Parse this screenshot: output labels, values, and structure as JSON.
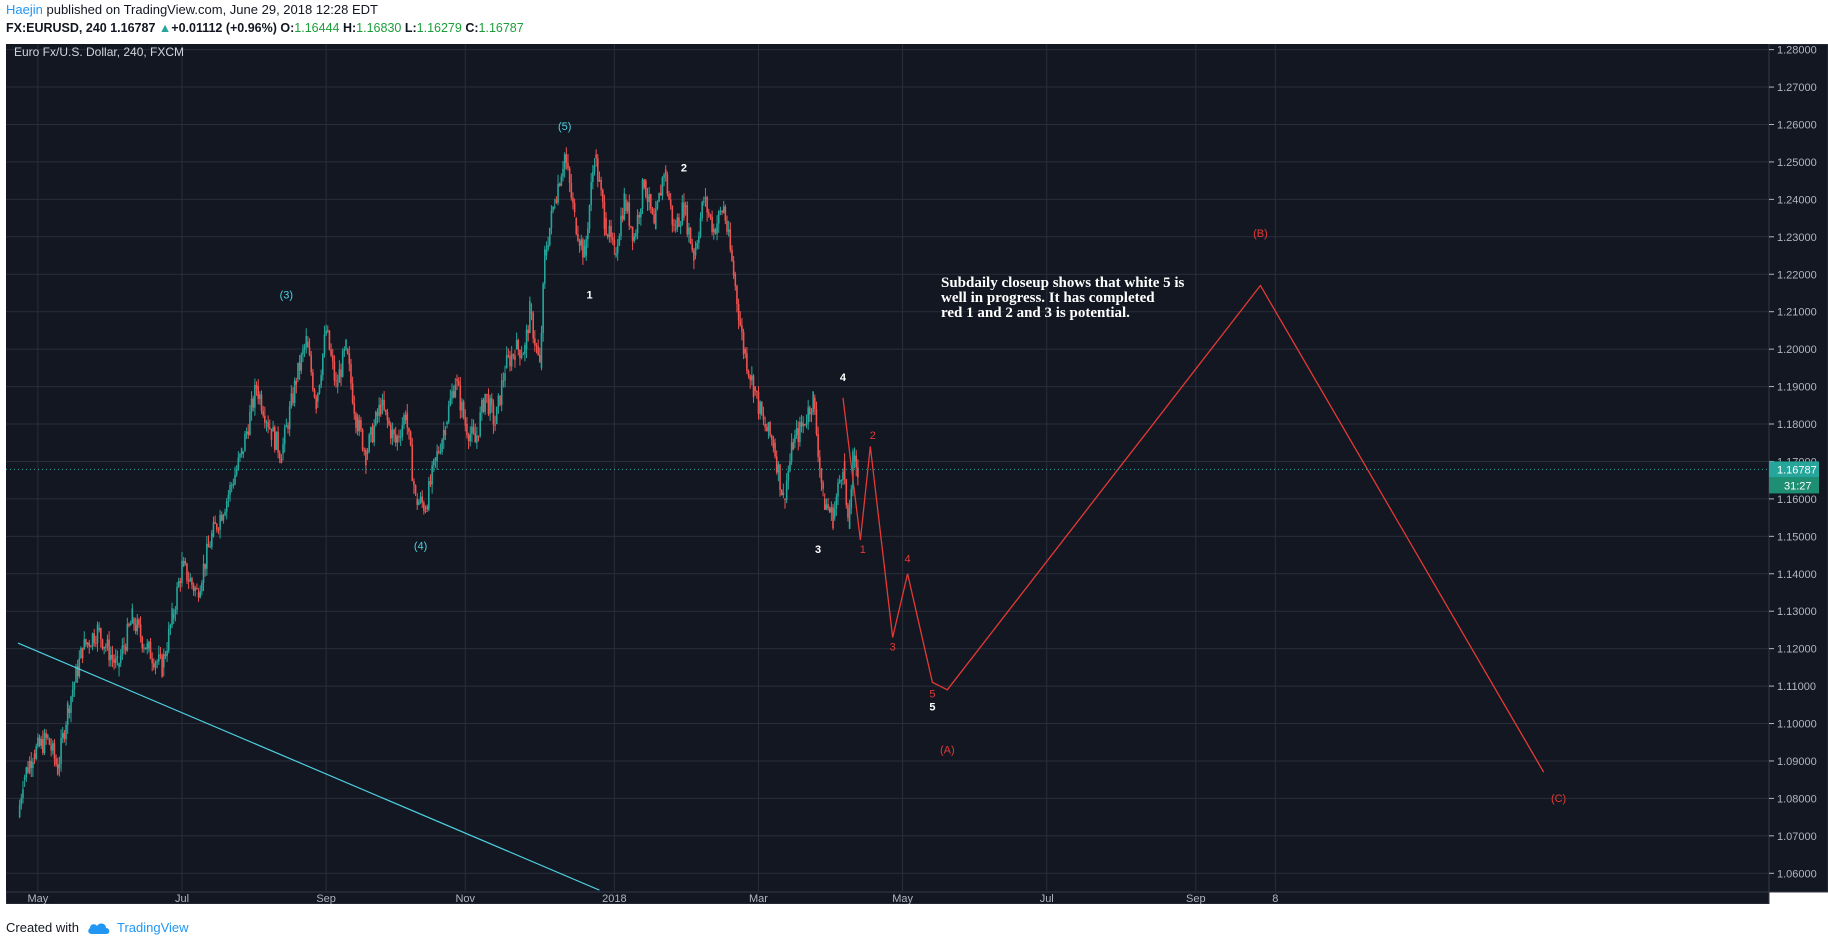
{
  "header": {
    "author": "Haejin",
    "published_text": "published on TradingView.com, June 29, 2018 12:28 EDT",
    "symbol": "FX:EURUSD, 240",
    "last": "1.16787",
    "change": "+0.01112 (+0.96%)",
    "o_label": "O:",
    "o": "1.16444",
    "h_label": "H:",
    "h": "1.16830",
    "l_label": "L:",
    "l": "1.16279",
    "c_label": "C:",
    "c": "1.16787"
  },
  "legend": "Euro Fx/U.S. Dollar, 240, FXCM",
  "price_tag": "1.16787",
  "countdown": "31:27",
  "annotation": [
    "Subdaily closeup shows that white 5 is",
    "well in progress. It has completed",
    "red 1 and 2 and 3 is potential."
  ],
  "footer": {
    "created_with": "Created with",
    "brand": "TradingView"
  },
  "colors": {
    "bg": "#131722",
    "grid": "#2a2e39",
    "axis_text": "#b2b5be",
    "up": "#26a69a",
    "down": "#ef5350",
    "cyan": "#4dd0e1",
    "red": "#e53935",
    "white": "#ffffff",
    "tag": "#26a69a"
  },
  "chart_data": {
    "type": "candlestick",
    "symbol": "EURUSD",
    "timeframe": "240",
    "x_ticks": [
      "May",
      "Jul",
      "Sep",
      "Nov",
      "2018",
      "Mar",
      "May",
      "Jul",
      "Sep",
      "8"
    ],
    "y_ticks": [
      "1.28000",
      "1.27000",
      "1.26000",
      "1.25000",
      "1.24000",
      "1.23000",
      "1.22000",
      "1.21000",
      "1.20000",
      "1.19000",
      "1.18000",
      "1.17000",
      "1.16000",
      "1.15000",
      "1.14000",
      "1.13000",
      "1.12000",
      "1.11000",
      "1.10000",
      "1.09000",
      "1.08000",
      "1.07000",
      "1.06000"
    ],
    "ylim": [
      1.055,
      1.2815
    ],
    "price_path": [
      [
        0,
        1.075
      ],
      [
        1,
        1.085
      ],
      [
        3,
        1.092
      ],
      [
        6,
        1.096
      ],
      [
        8,
        1.088
      ],
      [
        10,
        1.104
      ],
      [
        13,
        1.12
      ],
      [
        16,
        1.125
      ],
      [
        20,
        1.115
      ],
      [
        23,
        1.128
      ],
      [
        26,
        1.12
      ],
      [
        29,
        1.115
      ],
      [
        31,
        1.128
      ],
      [
        33,
        1.142
      ],
      [
        36,
        1.135
      ],
      [
        39,
        1.15
      ],
      [
        42,
        1.16
      ],
      [
        45,
        1.172
      ],
      [
        48,
        1.19
      ],
      [
        51,
        1.178
      ],
      [
        53,
        1.172
      ],
      [
        56,
        1.192
      ],
      [
        58,
        1.202
      ],
      [
        60,
        1.186
      ],
      [
        62,
        1.205
      ],
      [
        64,
        1.19
      ],
      [
        66,
        1.2
      ],
      [
        68,
        1.182
      ],
      [
        70,
        1.172
      ],
      [
        73,
        1.185
      ],
      [
        76,
        1.175
      ],
      [
        78,
        1.183
      ],
      [
        80,
        1.16
      ],
      [
        82,
        1.158
      ],
      [
        84,
        1.17
      ],
      [
        86,
        1.18
      ],
      [
        88,
        1.192
      ],
      [
        90,
        1.18
      ],
      [
        92,
        1.175
      ],
      [
        94,
        1.188
      ],
      [
        96,
        1.18
      ],
      [
        98,
        1.195
      ],
      [
        100,
        1.2
      ],
      [
        102,
        1.2
      ],
      [
        103,
        1.21
      ],
      [
        105,
        1.195
      ],
      [
        106,
        1.225
      ],
      [
        108,
        1.24
      ],
      [
        110,
        1.252
      ],
      [
        112,
        1.235
      ],
      [
        114,
        1.225
      ],
      [
        116,
        1.252
      ],
      [
        118,
        1.235
      ],
      [
        120,
        1.225
      ],
      [
        122,
        1.24
      ],
      [
        124,
        1.23
      ],
      [
        126,
        1.245
      ],
      [
        128,
        1.232
      ],
      [
        130,
        1.248
      ],
      [
        132,
        1.232
      ],
      [
        134,
        1.238
      ],
      [
        136,
        1.225
      ],
      [
        138,
        1.24
      ],
      [
        140,
        1.232
      ],
      [
        142,
        1.238
      ],
      [
        144,
        1.22
      ],
      [
        146,
        1.2
      ],
      [
        148,
        1.19
      ],
      [
        150,
        1.18
      ],
      [
        152,
        1.175
      ],
      [
        154,
        1.16
      ],
      [
        156,
        1.175
      ],
      [
        158,
        1.18
      ],
      [
        160,
        1.187
      ],
      [
        162,
        1.16
      ],
      [
        164,
        1.155
      ],
      [
        166,
        1.17
      ],
      [
        167,
        1.152
      ],
      [
        168,
        1.17
      ],
      [
        169,
        1.168
      ]
    ],
    "x_range": [
      0,
      330
    ],
    "waves_cyan": [
      {
        "label": "(3)",
        "t": 54,
        "p": 1.2135
      },
      {
        "label": "(4)",
        "t": 81,
        "p": 1.1465
      },
      {
        "label": "(5)",
        "t": 110,
        "p": 1.2585
      }
    ],
    "waves_white": [
      {
        "label": "1",
        "t": 115,
        "p": 1.2135
      },
      {
        "label": "2",
        "t": 134,
        "p": 1.2475
      },
      {
        "label": "3",
        "t": 161,
        "p": 1.1455
      },
      {
        "label": "4",
        "t": 166,
        "p": 1.1915
      },
      {
        "label": "5",
        "t": 184,
        "p": 1.1035
      }
    ],
    "red_path": [
      [
        166,
        1.187
      ],
      [
        169.5,
        1.149
      ],
      [
        171.5,
        1.174
      ],
      [
        176,
        1.123
      ],
      [
        179,
        1.14
      ],
      [
        184,
        1.111
      ],
      [
        187,
        1.109
      ],
      [
        250,
        1.217
      ],
      [
        307,
        1.087
      ]
    ],
    "red_labels": [
      {
        "label": "1",
        "t": 170,
        "p": 1.1455
      },
      {
        "label": "2",
        "t": 172,
        "p": 1.176
      },
      {
        "label": "3",
        "t": 176,
        "p": 1.1195
      },
      {
        "label": "4",
        "t": 179,
        "p": 1.143
      },
      {
        "label": "5",
        "t": 184,
        "p": 1.107
      },
      {
        "label": "(A)",
        "t": 187,
        "p": 1.092
      },
      {
        "label": "(B)",
        "t": 250,
        "p": 1.23
      },
      {
        "label": "(C)",
        "t": 310,
        "p": 1.079
      }
    ],
    "trendline": [
      [
        0,
        1.1215
      ],
      [
        117,
        1.0555
      ]
    ],
    "last_price": 1.16787
  }
}
